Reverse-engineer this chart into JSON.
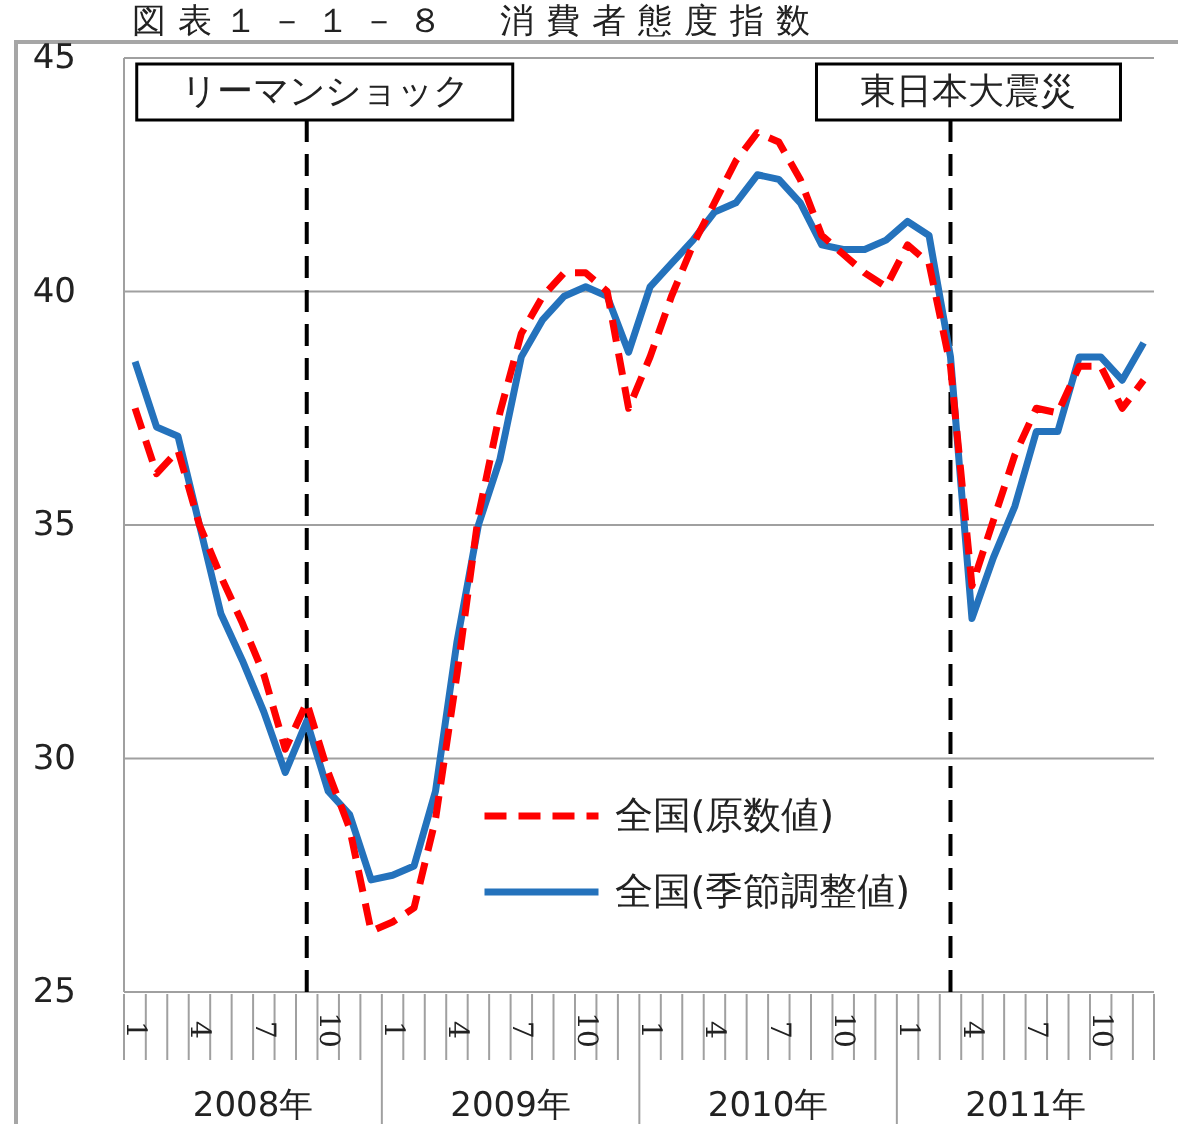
{
  "chart_data": {
    "type": "line",
    "title": "図表１－１－８　消費者態度指数",
    "x": [
      "2008-01",
      "2008-02",
      "2008-03",
      "2008-04",
      "2008-05",
      "2008-06",
      "2008-07",
      "2008-08",
      "2008-09",
      "2008-10",
      "2008-11",
      "2008-12",
      "2009-01",
      "2009-02",
      "2009-03",
      "2009-04",
      "2009-05",
      "2009-06",
      "2009-07",
      "2009-08",
      "2009-09",
      "2009-10",
      "2009-11",
      "2009-12",
      "2010-01",
      "2010-02",
      "2010-03",
      "2010-04",
      "2010-05",
      "2010-06",
      "2010-07",
      "2010-08",
      "2010-09",
      "2010-10",
      "2010-11",
      "2010-12",
      "2011-01",
      "2011-02",
      "2011-03",
      "2011-04",
      "2011-05",
      "2011-06",
      "2011-07",
      "2011-08",
      "2011-09",
      "2011-10",
      "2011-11",
      "2011-12"
    ],
    "xlim": [
      "2007-12-16",
      "2011-12-16"
    ],
    "xticks": [
      {
        "value": "2008-01",
        "label": "1"
      },
      {
        "value": "2008-04",
        "label": "4"
      },
      {
        "value": "2008-07",
        "label": "7"
      },
      {
        "value": "2008-10",
        "label": "10"
      },
      {
        "value": "2009-01",
        "label": "1"
      },
      {
        "value": "2009-04",
        "label": "4"
      },
      {
        "value": "2009-07",
        "label": "7"
      },
      {
        "value": "2009-10",
        "label": "10"
      },
      {
        "value": "2010-01",
        "label": "1"
      },
      {
        "value": "2010-04",
        "label": "4"
      },
      {
        "value": "2010-07",
        "label": "7"
      },
      {
        "value": "2010-10",
        "label": "10"
      },
      {
        "value": "2011-01",
        "label": "1"
      },
      {
        "value": "2011-04",
        "label": "4"
      },
      {
        "value": "2011-07",
        "label": "7"
      },
      {
        "value": "2011-10",
        "label": "10"
      }
    ],
    "ylim": [
      25,
      45
    ],
    "yticks": [
      25,
      30,
      35,
      40,
      45
    ],
    "grid": "y",
    "legend": "bottom",
    "series": [
      {
        "name": "全国(原数値)",
        "color": "#ff0000",
        "line_style": "dashed",
        "values": [
          37.5,
          36.1,
          36.6,
          35.0,
          33.9,
          32.9,
          31.8,
          30.2,
          31.2,
          29.7,
          28.5,
          26.3,
          26.5,
          26.8,
          28.7,
          31.8,
          35.2,
          37.4,
          39.1,
          39.9,
          40.4,
          40.4,
          40.0,
          37.5,
          38.6,
          39.9,
          41.0,
          41.9,
          42.8,
          43.4,
          43.2,
          42.4,
          41.2,
          40.8,
          40.4,
          40.1,
          41.0,
          40.6,
          38.4,
          33.7,
          35.1,
          36.5,
          37.5,
          37.4,
          38.4,
          38.4,
          37.5,
          38.1
        ]
      },
      {
        "name": "全国(季節調整値)",
        "color": "#2472bc",
        "line_style": "solid",
        "values": [
          38.5,
          37.1,
          36.9,
          35.0,
          33.1,
          32.1,
          31.0,
          29.7,
          30.8,
          29.3,
          28.8,
          27.4,
          27.5,
          27.7,
          29.3,
          32.5,
          35.0,
          36.4,
          38.6,
          39.4,
          39.9,
          40.1,
          39.9,
          38.7,
          40.1,
          40.6,
          41.1,
          41.7,
          41.9,
          42.5,
          42.4,
          41.9,
          41.0,
          40.9,
          40.9,
          41.1,
          41.5,
          41.2,
          38.6,
          33.0,
          34.3,
          35.4,
          37.0,
          37.0,
          38.6,
          38.6,
          38.1,
          38.9
        ]
      }
    ],
    "ref_lines": [
      {
        "axis": "x",
        "value": "2008-09",
        "label": "リーマンショック",
        "color": "#000000",
        "line_style": "dashed"
      },
      {
        "axis": "x",
        "value": "2011-03",
        "label": "東日本大震災",
        "color": "#000000",
        "line_style": "dashed"
      }
    ],
    "annotations": [
      "2008年",
      "2009年",
      "2010年",
      "2011年"
    ]
  }
}
